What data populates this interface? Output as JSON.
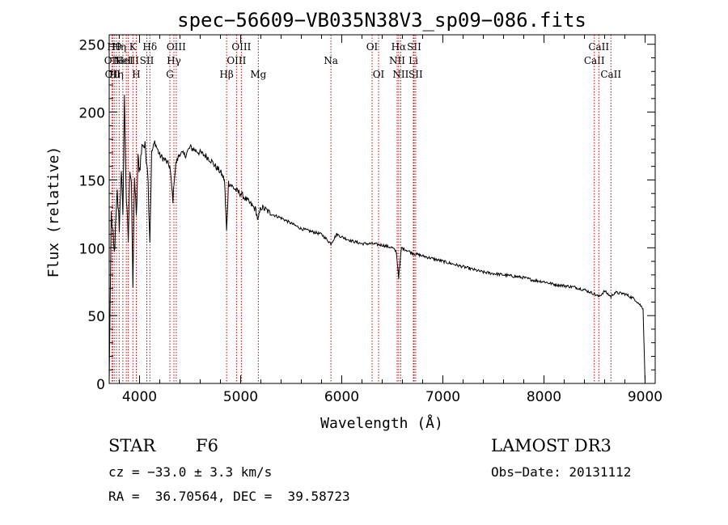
{
  "chart_data": {
    "type": "line",
    "title": "spec−56609−VB035N38V3_sp09−086.fits",
    "xlabel": "Wavelength (Å)",
    "ylabel": "Flux (relative)",
    "xlim": [
      3700,
      9100
    ],
    "ylim": [
      0,
      257
    ],
    "x_ticks": [
      4000,
      5000,
      6000,
      7000,
      8000,
      9000
    ],
    "y_ticks": [
      0,
      50,
      100,
      150,
      200,
      250
    ],
    "x_tick_labels": [
      "4000",
      "5000",
      "6000",
      "7000",
      "8000",
      "9000"
    ],
    "y_tick_labels": [
      "0",
      "50",
      "100",
      "150",
      "200",
      "250"
    ],
    "line_color": "#000000",
    "series": [
      {
        "name": "spectrum",
        "x": [
          3700,
          3720,
          3750,
          3780,
          3800,
          3820,
          3835,
          3850,
          3870,
          3889,
          3905,
          3920,
          3934,
          3950,
          3968,
          3985,
          4000,
          4030,
          4060,
          4080,
          4102,
          4120,
          4150,
          4200,
          4250,
          4300,
          4330,
          4340,
          4360,
          4400,
          4450,
          4500,
          4550,
          4600,
          4650,
          4700,
          4750,
          4800,
          4840,
          4861,
          4880,
          4920,
          4960,
          5000,
          5050,
          5100,
          5150,
          5172,
          5200,
          5250,
          5300,
          5400,
          5500,
          5600,
          5700,
          5800,
          5893,
          5950,
          6000,
          6100,
          6200,
          6300,
          6400,
          6500,
          6540,
          6563,
          6590,
          6650,
          6700,
          6800,
          6900,
          7000,
          7100,
          7200,
          7300,
          7400,
          7500,
          7600,
          7700,
          7800,
          7900,
          8000,
          8100,
          8200,
          8300,
          8400,
          8498,
          8542,
          8600,
          8662,
          8700,
          8800,
          8900,
          8950,
          8980,
          9000
        ],
        "y": [
          0,
          125,
          95,
          140,
          115,
          160,
          120,
          210,
          135,
          105,
          160,
          150,
          65,
          155,
          120,
          165,
          158,
          178,
          172,
          160,
          105,
          170,
          178,
          168,
          165,
          160,
          135,
          148,
          162,
          170,
          168,
          174,
          172,
          170,
          168,
          165,
          160,
          156,
          150,
          112,
          148,
          145,
          142,
          140,
          136,
          132,
          128,
          120,
          130,
          128,
          125,
          122,
          118,
          114,
          112,
          110,
          103,
          110,
          108,
          105,
          103,
          103,
          102,
          100,
          97,
          78,
          100,
          98,
          96,
          94,
          92,
          90,
          88,
          86,
          84,
          82,
          81,
          80,
          79,
          78,
          76,
          75,
          73,
          72,
          71,
          69,
          66,
          64,
          68,
          64,
          67,
          66,
          62,
          58,
          55,
          0
        ]
      }
    ],
    "lines": [
      {
        "wl": 3727,
        "label": "OII",
        "row": 2
      },
      {
        "wl": 3734,
        "label": "OII",
        "row": 3
      },
      {
        "wl": 3750,
        "label": "Hθ",
        "row": 1
      },
      {
        "wl": 3771,
        "label": "Hη",
        "row": 3
      },
      {
        "wl": 3798,
        "label": "Hη",
        "row": 1
      },
      {
        "wl": 3835,
        "label": "",
        "row": 0
      },
      {
        "wl": 3869,
        "label": "NeIII",
        "row": 2
      },
      {
        "wl": 3889,
        "label": "",
        "row": 0
      },
      {
        "wl": 3934,
        "label": "K",
        "row": 1
      },
      {
        "wl": 3968,
        "label": "H",
        "row": 3
      },
      {
        "wl": 4072,
        "label": "SII",
        "row": 2
      },
      {
        "wl": 4102,
        "label": "Hδ",
        "row": 1
      },
      {
        "wl": 4300,
        "label": "G",
        "row": 3
      },
      {
        "wl": 4340,
        "label": "Hγ",
        "row": 2
      },
      {
        "wl": 4363,
        "label": "OIII",
        "row": 1
      },
      {
        "wl": 4861,
        "label": "Hβ",
        "row": 3
      },
      {
        "wl": 4959,
        "label": "OIII",
        "row": 2
      },
      {
        "wl": 5007,
        "label": "OIII",
        "row": 1
      },
      {
        "wl": 5175,
        "label": "Mg",
        "row": 3
      },
      {
        "wl": 5893,
        "label": "Na",
        "row": 2
      },
      {
        "wl": 6300,
        "label": "OI",
        "row": 1
      },
      {
        "wl": 6364,
        "label": "OI",
        "row": 3
      },
      {
        "wl": 6548,
        "label": "NII",
        "row": 2
      },
      {
        "wl": 6563,
        "label": "Hα",
        "row": 1
      },
      {
        "wl": 6583,
        "label": "NII",
        "row": 3
      },
      {
        "wl": 6708,
        "label": "Li",
        "row": 2
      },
      {
        "wl": 6716,
        "label": "SII",
        "row": 1
      },
      {
        "wl": 6731,
        "label": "SII",
        "row": 3
      },
      {
        "wl": 8498,
        "label": "CaII",
        "row": 2
      },
      {
        "wl": 8542,
        "label": "CaII",
        "row": 1
      },
      {
        "wl": 8662,
        "label": "CaII",
        "row": 3
      }
    ],
    "annotations": [
      {
        "text": "HeI",
        "wl": 3850,
        "row": 2
      }
    ]
  },
  "info": {
    "object_class": "STAR",
    "subclass": "F6",
    "cz": "cz = −33.0 ± 3.3 km/s",
    "coords": "RA =  36.70564, DEC =  39.58723",
    "survey": "LAMOST DR3",
    "obs_date": "Obs−Date: 20131112"
  }
}
